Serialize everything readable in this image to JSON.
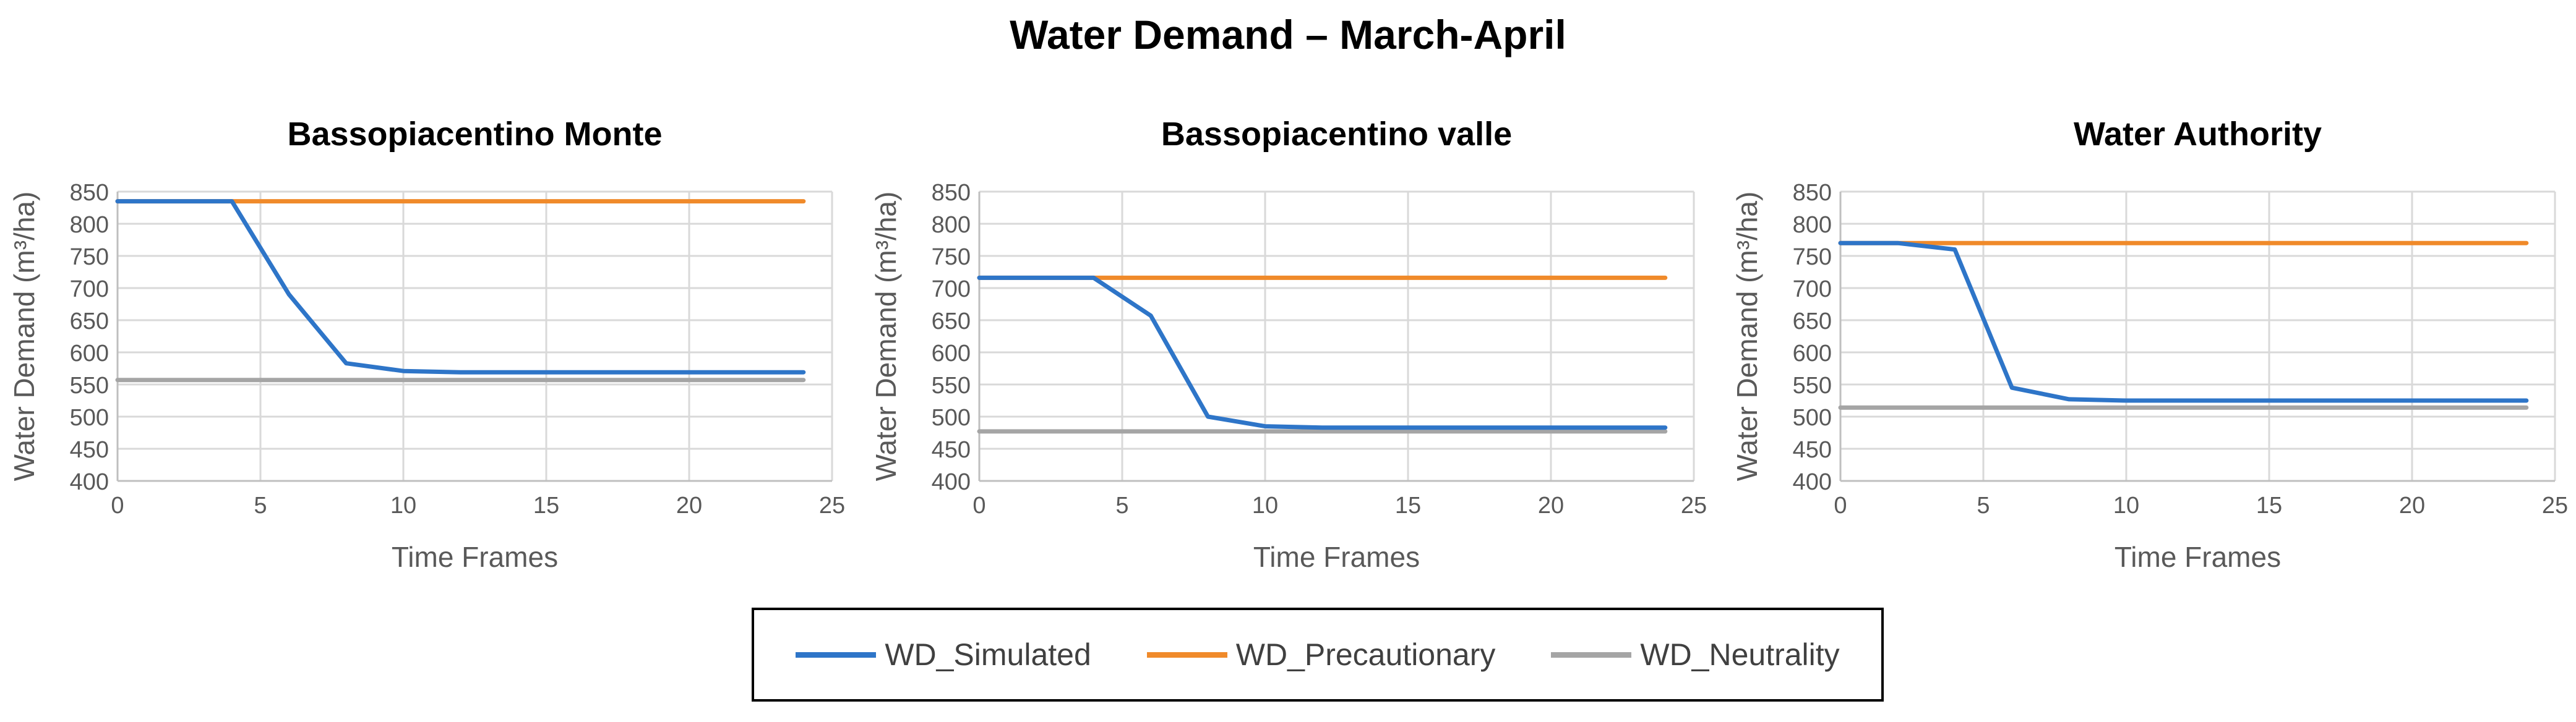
{
  "title": "Water Demand – March-April",
  "legend": [
    {
      "label": "WD_Simulated",
      "color": "#2e75c8"
    },
    {
      "label": "WD_Precautionary",
      "color": "#f08a2a"
    },
    {
      "label": "WD_Neutrality",
      "color": "#a5a5a5"
    }
  ],
  "chart_data": [
    {
      "type": "line",
      "title": "Bassopiacentino Monte",
      "xlabel": "Time Frames",
      "ylabel": "Water Demand (m³/ha)",
      "xlim": [
        0,
        25
      ],
      "ylim": [
        400,
        850
      ],
      "xticks": [
        "0",
        "5",
        "10",
        "15",
        "20",
        "25"
      ],
      "yticks": [
        "400",
        "450",
        "500",
        "550",
        "600",
        "650",
        "700",
        "750",
        "800",
        "850"
      ],
      "series": [
        {
          "name": "WD_Simulated",
          "x": [
            0,
            4,
            6,
            8,
            10,
            12,
            24
          ],
          "y": [
            835,
            835,
            690,
            583,
            571,
            569,
            569
          ]
        },
        {
          "name": "WD_Precautionary",
          "x": [
            0,
            24
          ],
          "y": [
            835,
            835
          ]
        },
        {
          "name": "WD_Neutrality",
          "x": [
            0,
            24
          ],
          "y": [
            557,
            557
          ]
        }
      ]
    },
    {
      "type": "line",
      "title": "Bassopiacentino valle",
      "xlabel": "Time Frames",
      "ylabel": "Water Demand (m³/ha)",
      "xlim": [
        0,
        25
      ],
      "ylim": [
        400,
        850
      ],
      "xticks": [
        "0",
        "5",
        "10",
        "15",
        "20",
        "25"
      ],
      "yticks": [
        "400",
        "450",
        "500",
        "550",
        "600",
        "650",
        "700",
        "750",
        "800",
        "850"
      ],
      "series": [
        {
          "name": "WD_Simulated",
          "x": [
            0,
            4,
            6,
            8,
            10,
            12,
            24
          ],
          "y": [
            716,
            716,
            657,
            500,
            485,
            483,
            483
          ]
        },
        {
          "name": "WD_Precautionary",
          "x": [
            0,
            24
          ],
          "y": [
            716,
            716
          ]
        },
        {
          "name": "WD_Neutrality",
          "x": [
            0,
            24
          ],
          "y": [
            477,
            477
          ]
        }
      ]
    },
    {
      "type": "line",
      "title": "Water Authority",
      "xlabel": "Time Frames",
      "ylabel": "Water Demand (m³/ha)",
      "xlim": [
        0,
        25
      ],
      "ylim": [
        400,
        850
      ],
      "xticks": [
        "0",
        "5",
        "10",
        "15",
        "20",
        "25"
      ],
      "yticks": [
        "400",
        "450",
        "500",
        "550",
        "600",
        "650",
        "700",
        "750",
        "800",
        "850"
      ],
      "series": [
        {
          "name": "WD_Simulated",
          "x": [
            0,
            2,
            4,
            6,
            8,
            10,
            24
          ],
          "y": [
            770,
            770,
            760,
            545,
            527,
            525,
            525
          ]
        },
        {
          "name": "WD_Precautionary",
          "x": [
            0,
            24
          ],
          "y": [
            770,
            770
          ]
        },
        {
          "name": "WD_Neutrality",
          "x": [
            0,
            24
          ],
          "y": [
            514,
            514
          ]
        }
      ]
    }
  ]
}
